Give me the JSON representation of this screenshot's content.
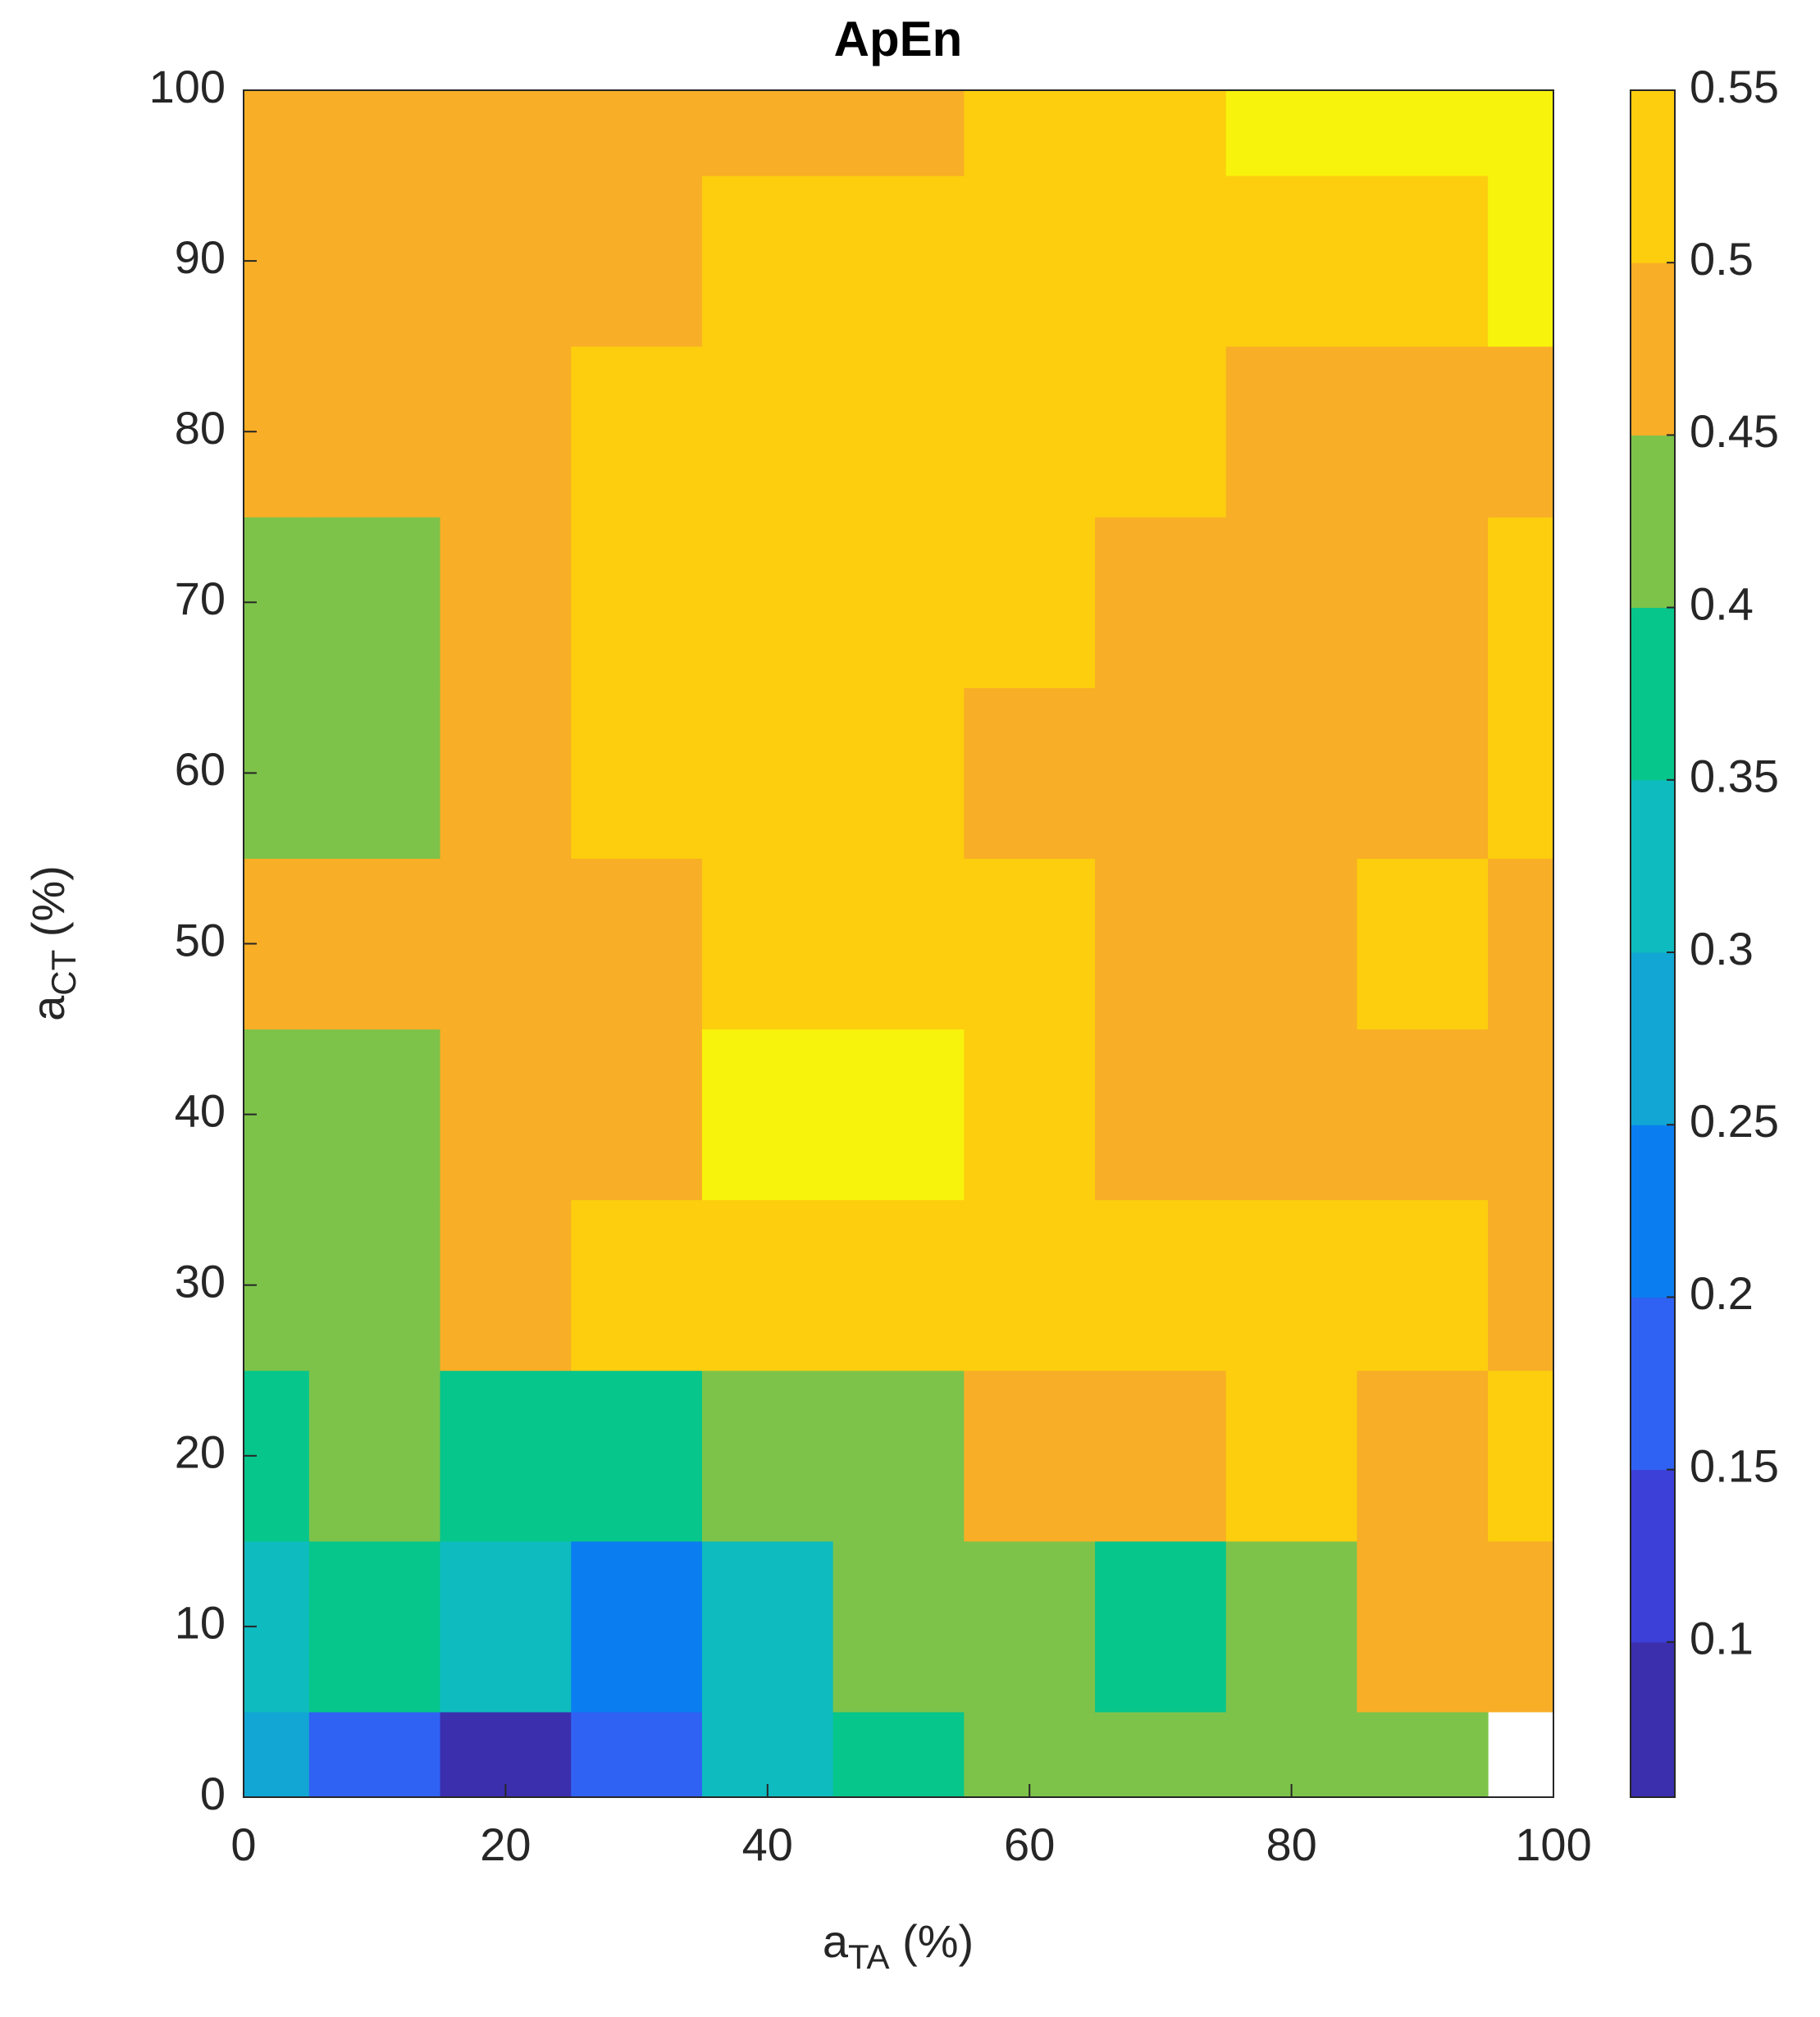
{
  "chart_data": {
    "type": "contour",
    "title": "ApEn",
    "xlabel": [
      "a",
      "TA",
      " (%)"
    ],
    "ylabel": [
      "a",
      "CT",
      " (%)"
    ],
    "x": [
      0,
      10,
      20,
      30,
      40,
      50,
      60,
      70,
      80,
      90,
      100
    ],
    "y": [
      0,
      10,
      20,
      30,
      40,
      50,
      60,
      70,
      80,
      90,
      100
    ],
    "z": [
      [
        0.25,
        0.15,
        0.08,
        0.15,
        0.3,
        0.38,
        0.42,
        0.42,
        0.42,
        0.42,
        null
      ],
      [
        0.33,
        0.38,
        0.3,
        0.22,
        0.3,
        0.42,
        0.43,
        0.35,
        0.43,
        0.46,
        0.46
      ],
      [
        0.39,
        0.44,
        0.38,
        0.37,
        0.4,
        0.43,
        0.48,
        0.48,
        0.5,
        0.49,
        0.51
      ],
      [
        0.41,
        0.41,
        0.46,
        0.52,
        0.54,
        0.52,
        0.51,
        0.51,
        0.51,
        0.51,
        0.49
      ],
      [
        0.44,
        0.43,
        0.47,
        0.48,
        0.55,
        0.56,
        0.5,
        0.48,
        0.49,
        0.49,
        0.49
      ],
      [
        0.47,
        0.47,
        0.48,
        0.49,
        0.52,
        0.53,
        0.51,
        0.47,
        0.47,
        0.5,
        0.49
      ],
      [
        0.44,
        0.43,
        0.48,
        0.51,
        0.53,
        0.52,
        0.49,
        0.47,
        0.47,
        0.49,
        0.51
      ],
      [
        0.43,
        0.44,
        0.47,
        0.5,
        0.54,
        0.52,
        0.51,
        0.48,
        0.48,
        0.47,
        0.5
      ],
      [
        0.47,
        0.47,
        0.48,
        0.51,
        0.52,
        0.51,
        0.5,
        0.51,
        0.48,
        0.48,
        0.48
      ],
      [
        0.48,
        0.47,
        0.48,
        0.49,
        0.51,
        0.52,
        0.51,
        0.52,
        0.54,
        0.54,
        0.56
      ],
      [
        0.48,
        0.48,
        0.48,
        0.48,
        0.48,
        0.49,
        0.51,
        0.53,
        0.56,
        0.56,
        0.56
      ]
    ],
    "xlim": [
      0,
      100
    ],
    "xticks": [
      0,
      20,
      40,
      60,
      80,
      100
    ],
    "ylim": [
      0,
      100
    ],
    "yticks": [
      0,
      10,
      20,
      30,
      40,
      50,
      60,
      70,
      80,
      90,
      100
    ],
    "zlim": [
      0.055,
      0.55
    ],
    "zticks": [
      0.1,
      0.15,
      0.2,
      0.25,
      0.3,
      0.35,
      0.4,
      0.45,
      0.5,
      0.55
    ],
    "colormap": [
      "#3b2fae",
      "#3c40d8",
      "#2f62f3",
      "#0a7ef0",
      "#11a6d3",
      "#0ebbbf",
      "#06c68b",
      "#7dc34a",
      "#f8ae26",
      "#fcce0e",
      "#f8f30c"
    ]
  }
}
